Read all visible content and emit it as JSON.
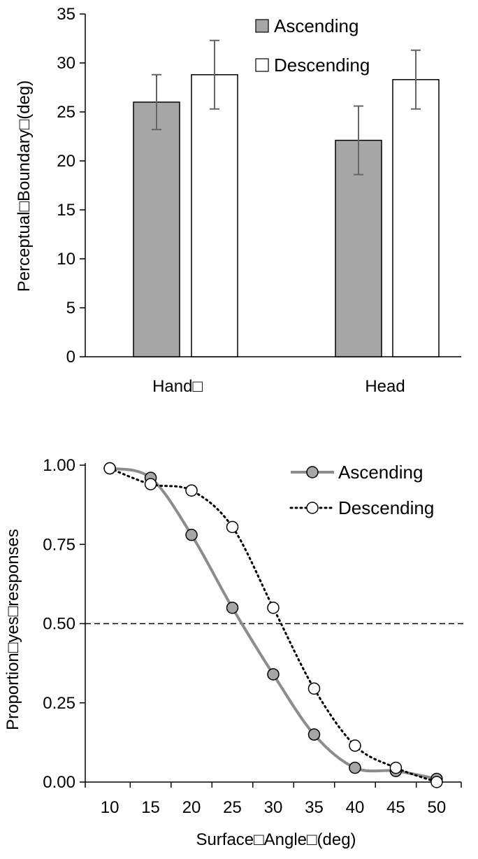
{
  "chart_data": [
    {
      "type": "bar",
      "ylabel": "Perceptual□Boundary□(deg)",
      "ylim": [
        0,
        35
      ],
      "yticks": [
        0,
        5,
        10,
        15,
        20,
        25,
        30,
        35
      ],
      "categories": [
        "Hand□",
        "Head"
      ],
      "legend": "top-right",
      "series": [
        {
          "name": "Ascending",
          "color": "#a6a6a6",
          "values": [
            26.0,
            22.1
          ],
          "errors": [
            2.8,
            3.5
          ]
        },
        {
          "name": "Descending",
          "color": "#ffffff",
          "values": [
            28.8,
            28.3
          ],
          "errors": [
            3.5,
            3.0
          ]
        }
      ]
    },
    {
      "type": "line",
      "xlabel": "Surface□Angle□(deg)",
      "ylabel": "Proportion□yes□responses",
      "xlim": [
        7,
        53
      ],
      "ylim": [
        0,
        1
      ],
      "x": [
        10,
        15,
        20,
        25,
        30,
        35,
        40,
        45,
        50
      ],
      "xtick_labels": [
        "10",
        "15",
        "20",
        "25",
        "30",
        "35",
        "40",
        "45",
        "50"
      ],
      "ytick_values": [
        0,
        0.25,
        0.5,
        0.75,
        1.0
      ],
      "ytick_labels": [
        "0.00",
        "0.25",
        "0.50",
        "0.75",
        "1.00"
      ],
      "reference_line": 0.5,
      "legend": "top-right",
      "series": [
        {
          "name": "Ascending",
          "style": "solid",
          "color": "#8c8c8c",
          "values": [
            0.99,
            0.96,
            0.78,
            0.55,
            0.34,
            0.15,
            0.045,
            0.035,
            0.01
          ]
        },
        {
          "name": "Descending",
          "style": "dotted",
          "color": "#000000",
          "values": [
            0.99,
            0.94,
            0.92,
            0.805,
            0.55,
            0.295,
            0.115,
            0.045,
            0.0
          ]
        }
      ]
    }
  ]
}
